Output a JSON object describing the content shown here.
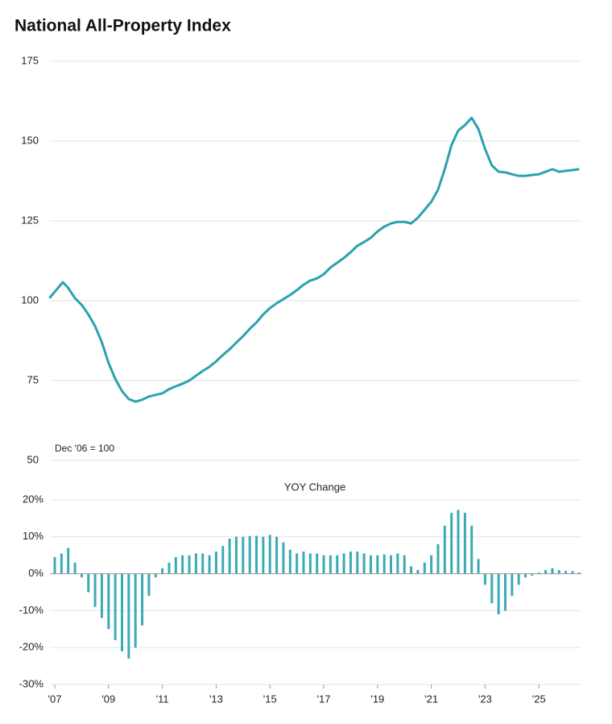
{
  "chart_data": [
    {
      "type": "line",
      "title": "National All-Property Index",
      "annotation": "Dec '06 = 100",
      "x": [
        2006.8,
        2007.3,
        2007.5,
        2007.75,
        2008.0,
        2008.25,
        2008.5,
        2008.75,
        2009.0,
        2009.25,
        2009.5,
        2009.75,
        2010.0,
        2010.25,
        2010.5,
        2010.75,
        2011.0,
        2011.25,
        2011.5,
        2011.75,
        2012.0,
        2012.25,
        2012.5,
        2012.75,
        2013.0,
        2013.25,
        2013.5,
        2013.75,
        2014.0,
        2014.25,
        2014.5,
        2014.75,
        2015.0,
        2015.25,
        2015.5,
        2015.75,
        2016.0,
        2016.25,
        2016.5,
        2016.75,
        2017.0,
        2017.25,
        2017.5,
        2017.75,
        2018.0,
        2018.25,
        2018.5,
        2018.75,
        2019.0,
        2019.25,
        2019.5,
        2019.75,
        2020.0,
        2020.25,
        2020.5,
        2020.75,
        2021.0,
        2021.25,
        2021.5,
        2021.75,
        2022.0,
        2022.25,
        2022.5,
        2022.75,
        2023.0,
        2023.25,
        2023.5,
        2023.75,
        2024.0,
        2024.25,
        2024.5,
        2024.75,
        2025.0,
        2025.25,
        2025.5,
        2025.75,
        2026.0,
        2026.25,
        2026.5
      ],
      "series": [
        {
          "name": "Index",
          "color": "#2aa2ae",
          "values": [
            100.8,
            105.8,
            104,
            100.8,
            98.7,
            95.7,
            92,
            87,
            80.5,
            75.5,
            71.7,
            69.2,
            68.4,
            69,
            70,
            70.5,
            71,
            72.3,
            73.2,
            74,
            75,
            76.5,
            78,
            79.3,
            81,
            83,
            84.8,
            86.9,
            88.9,
            91.2,
            93.2,
            95.7,
            97.7,
            99.2,
            100.5,
            101.8,
            103.3,
            105,
            106.3,
            107,
            108.3,
            110.4,
            111.9,
            113.4,
            115.2,
            117.2,
            118.4,
            119.7,
            121.7,
            123.2,
            124.2,
            124.7,
            124.7,
            124.2,
            126,
            128.5,
            131,
            134.8,
            141.2,
            148.7,
            153.3,
            155,
            157.3,
            153.8,
            147.5,
            142.4,
            140.4,
            140.2,
            139.6,
            139.1,
            139.1,
            139.4,
            139.6,
            140.4,
            141.2,
            140.4,
            140.7,
            140.9,
            141.2
          ]
        }
      ],
      "xlim": [
        2006.82,
        2026.58
      ],
      "ylim": [
        50,
        175
      ],
      "yticks": [
        50,
        75,
        100,
        125,
        150,
        175
      ],
      "grid": true
    },
    {
      "type": "bar",
      "title": "YOY Change",
      "x": [
        2007.0,
        2007.25,
        2007.5,
        2007.75,
        2008.0,
        2008.25,
        2008.5,
        2008.75,
        2009.0,
        2009.25,
        2009.5,
        2009.75,
        2010.0,
        2010.25,
        2010.5,
        2010.75,
        2011.0,
        2011.25,
        2011.5,
        2011.75,
        2012.0,
        2012.25,
        2012.5,
        2012.75,
        2013.0,
        2013.25,
        2013.5,
        2013.75,
        2014.0,
        2014.25,
        2014.5,
        2014.75,
        2015.0,
        2015.25,
        2015.5,
        2015.75,
        2016.0,
        2016.25,
        2016.5,
        2016.75,
        2017.0,
        2017.25,
        2017.5,
        2017.75,
        2018.0,
        2018.25,
        2018.5,
        2018.75,
        2019.0,
        2019.25,
        2019.5,
        2019.75,
        2020.0,
        2020.25,
        2020.5,
        2020.75,
        2021.0,
        2021.25,
        2021.5,
        2021.75,
        2022.0,
        2022.25,
        2022.5,
        2022.75,
        2023.0,
        2023.25,
        2023.5,
        2023.75,
        2024.0,
        2024.25,
        2024.5,
        2024.75,
        2025.0,
        2025.25,
        2025.5,
        2025.75,
        2026.0,
        2026.25,
        2026.5
      ],
      "values": [
        4.5,
        5.5,
        7,
        3,
        -1,
        -5,
        -9,
        -12,
        -15,
        -18,
        -21,
        -23,
        -20,
        -14,
        -6,
        -1,
        1.5,
        3,
        4.5,
        5,
        5,
        5.5,
        5.5,
        5,
        6,
        7.5,
        9.5,
        10,
        10,
        10.2,
        10.3,
        10,
        10.5,
        10,
        8.5,
        6.5,
        5.5,
        6,
        5.5,
        5.5,
        5,
        5,
        5,
        5.5,
        6,
        6,
        5.5,
        5,
        5,
        5.2,
        5,
        5.5,
        5,
        2,
        1,
        3,
        5,
        8,
        13,
        16.5,
        17.3,
        16.5,
        13,
        4,
        -3,
        -8,
        -11,
        -10,
        -6,
        -3,
        -1,
        -0.5,
        0.3,
        1,
        1.5,
        1,
        0.8,
        0.7,
        0.3
      ],
      "color": "#3aabb6",
      "xlim": [
        2006.82,
        2026.58
      ],
      "ylim": [
        -30,
        20
      ],
      "yticks": [
        {
          "value": -30,
          "label": "-30%"
        },
        {
          "value": -20,
          "label": "-20%"
        },
        {
          "value": -10,
          "label": "-10%"
        },
        {
          "value": 0,
          "label": "0%"
        },
        {
          "value": 10,
          "label": "10%"
        },
        {
          "value": 20,
          "label": "20%"
        }
      ],
      "xticks": [
        {
          "value": 2007,
          "label": "'07"
        },
        {
          "value": 2009,
          "label": "'09"
        },
        {
          "value": 2011,
          "label": "'11"
        },
        {
          "value": 2013,
          "label": "'13"
        },
        {
          "value": 2015,
          "label": "'15"
        },
        {
          "value": 2017,
          "label": "'17"
        },
        {
          "value": 2019,
          "label": "'19"
        },
        {
          "value": 2021,
          "label": "'21"
        },
        {
          "value": 2023,
          "label": "'23"
        },
        {
          "value": 2025,
          "label": "'25"
        }
      ],
      "grid": true
    }
  ]
}
